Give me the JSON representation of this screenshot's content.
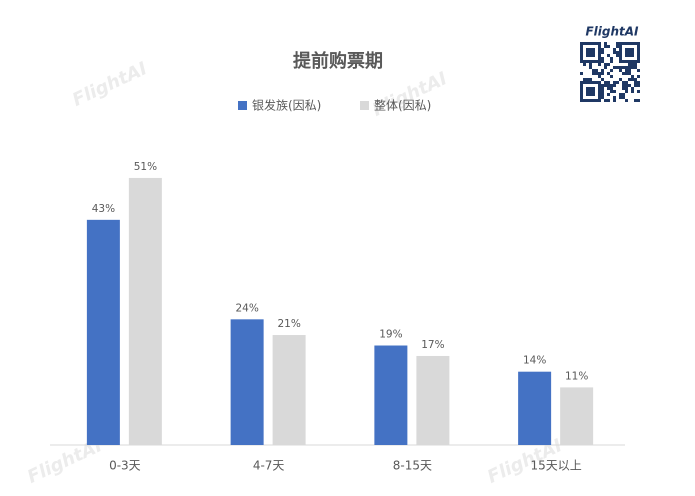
{
  "chart_data": {
    "type": "bar",
    "title": "提前购票期",
    "categories": [
      "0-3天",
      "4-7天",
      "8-15天",
      "15天以上"
    ],
    "series": [
      {
        "name": "银发族(因私)",
        "color": "#4472c4",
        "values": [
          43,
          24,
          19,
          14
        ],
        "value_labels": [
          "43%",
          "24%",
          "19%",
          "14%"
        ]
      },
      {
        "name": "整体(因私)",
        "color": "#d9d9d9",
        "values": [
          51,
          21,
          17,
          11
        ],
        "value_labels": [
          "51%",
          "21%",
          "17%",
          "11%"
        ]
      }
    ],
    "ylim": [
      0,
      55
    ],
    "legend": "top"
  },
  "logo": "FlightAI",
  "watermark": "FlightAI"
}
